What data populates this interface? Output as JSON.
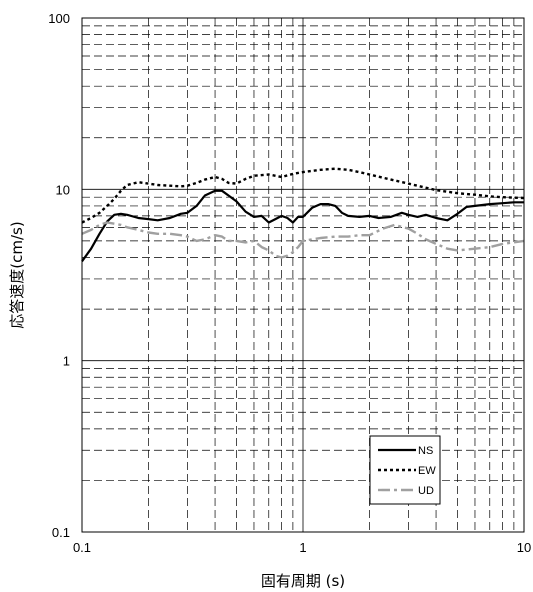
{
  "chart_data": {
    "type": "line",
    "title": "",
    "xlabel": "固有周期 (s)",
    "ylabel": "応答速度(cm/s)",
    "x_scale": "log",
    "y_scale": "log",
    "xlim": [
      0.1,
      10
    ],
    "ylim": [
      0.1,
      100
    ],
    "x_ticks": [
      "0.1",
      "1",
      "10"
    ],
    "y_ticks": [
      "100",
      "10",
      "1",
      "0.1"
    ],
    "grid": true,
    "legend_position": "bottom-right",
    "series": [
      {
        "name": "NS",
        "style": "solid",
        "color": "#000000",
        "x": [
          0.1,
          0.11,
          0.12,
          0.13,
          0.14,
          0.15,
          0.16,
          0.18,
          0.2,
          0.22,
          0.25,
          0.28,
          0.3,
          0.33,
          0.36,
          0.4,
          0.43,
          0.46,
          0.5,
          0.55,
          0.6,
          0.65,
          0.7,
          0.75,
          0.8,
          0.85,
          0.9,
          0.95,
          1.0,
          1.1,
          1.2,
          1.3,
          1.4,
          1.5,
          1.6,
          1.8,
          2.0,
          2.2,
          2.5,
          2.8,
          3.0,
          3.3,
          3.6,
          4.0,
          4.5,
          5.0,
          5.5,
          6.0,
          7.0,
          8.0,
          9.0,
          10.0
        ],
        "values": [
          3.8,
          4.5,
          5.5,
          6.5,
          7.1,
          7.2,
          7.1,
          6.8,
          6.7,
          6.6,
          6.8,
          7.2,
          7.3,
          8.0,
          9.2,
          9.8,
          9.8,
          9.2,
          8.5,
          7.4,
          6.9,
          7.0,
          6.4,
          6.7,
          7.0,
          6.8,
          6.4,
          6.9,
          6.9,
          7.8,
          8.2,
          8.2,
          8.0,
          7.3,
          7.0,
          6.9,
          7.0,
          6.8,
          6.9,
          7.3,
          7.1,
          6.9,
          7.1,
          6.8,
          6.6,
          7.2,
          7.9,
          8.0,
          8.2,
          8.3,
          8.4,
          8.4
        ]
      },
      {
        "name": "EW",
        "style": "dotted",
        "color": "#000000",
        "x": [
          0.1,
          0.11,
          0.12,
          0.13,
          0.14,
          0.15,
          0.16,
          0.18,
          0.2,
          0.22,
          0.25,
          0.28,
          0.3,
          0.33,
          0.36,
          0.4,
          0.43,
          0.46,
          0.5,
          0.55,
          0.6,
          0.7,
          0.8,
          0.9,
          1.0,
          1.2,
          1.4,
          1.6,
          1.8,
          2.0,
          2.5,
          3.0,
          3.5,
          4.0,
          5.0,
          6.0,
          7.0,
          8.0,
          10.0
        ],
        "values": [
          6.4,
          6.8,
          7.3,
          8.0,
          8.8,
          9.8,
          10.6,
          11.0,
          10.8,
          10.6,
          10.5,
          10.4,
          10.5,
          10.9,
          11.4,
          11.8,
          11.5,
          10.9,
          10.8,
          11.5,
          12.0,
          12.2,
          11.8,
          12.3,
          12.6,
          13.0,
          13.2,
          13.0,
          12.6,
          12.2,
          11.4,
          10.8,
          10.3,
          9.9,
          9.5,
          9.3,
          9.1,
          9.0,
          8.9
        ]
      },
      {
        "name": "UD",
        "style": "dash-dot",
        "color": "#a0a0a0",
        "x": [
          0.1,
          0.11,
          0.12,
          0.13,
          0.14,
          0.15,
          0.16,
          0.18,
          0.2,
          0.22,
          0.25,
          0.28,
          0.3,
          0.33,
          0.36,
          0.4,
          0.43,
          0.46,
          0.5,
          0.55,
          0.6,
          0.65,
          0.7,
          0.75,
          0.8,
          0.85,
          0.9,
          0.95,
          1.0,
          1.2,
          1.4,
          1.6,
          1.8,
          2.0,
          2.3,
          2.6,
          3.0,
          3.3,
          3.6,
          4.0,
          4.5,
          5.0,
          6.0,
          7.0,
          8.0,
          10.0
        ],
        "values": [
          5.5,
          5.8,
          6.2,
          6.4,
          6.3,
          6.2,
          6.0,
          5.8,
          5.6,
          5.5,
          5.5,
          5.4,
          5.3,
          5.0,
          5.1,
          5.4,
          5.3,
          5.0,
          5.0,
          4.9,
          5.0,
          4.6,
          4.4,
          4.1,
          4.0,
          4.1,
          4.3,
          4.6,
          5.0,
          5.2,
          5.3,
          5.3,
          5.4,
          5.4,
          5.9,
          6.2,
          5.9,
          5.5,
          5.1,
          4.8,
          4.5,
          4.4,
          4.5,
          4.6,
          4.8,
          5.0
        ]
      }
    ]
  }
}
